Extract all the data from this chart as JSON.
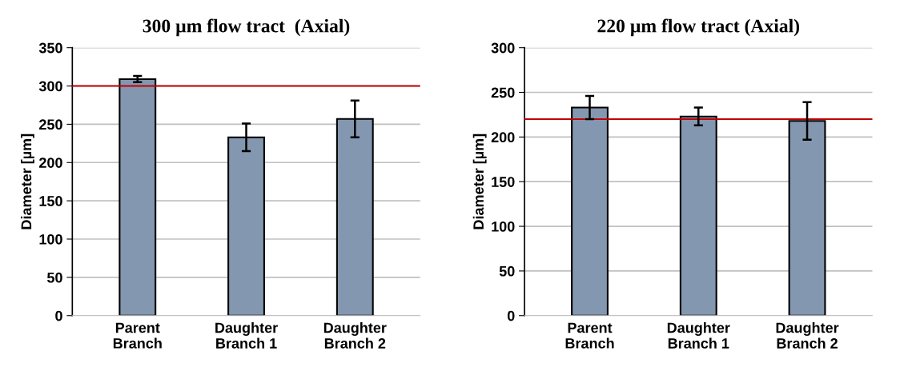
{
  "chart_data": [
    {
      "type": "bar",
      "title": "300 µm flow tract  (Axial)",
      "ylabel": "Diameter [µm]",
      "categories": [
        "Parent\nBranch",
        "Daughter\nBranch 1",
        "Daughter\nBranch 2"
      ],
      "values": [
        309,
        233,
        257
      ],
      "errors": [
        4,
        18,
        24
      ],
      "color": "#8497b0",
      "ylim": [
        0,
        350
      ],
      "yticks": [
        0,
        50,
        100,
        150,
        200,
        250,
        300,
        350
      ],
      "grid": "y",
      "legend": false,
      "ref_lines": [
        {
          "axis": "y",
          "value": 300,
          "color": "#c00000"
        }
      ]
    },
    {
      "type": "bar",
      "title": "220 µm flow tract (Axial)",
      "ylabel": "Diameter [µm]",
      "categories": [
        "Parent\nBranch",
        "Daughter\nBranch 1",
        "Daughter\nBranch 2"
      ],
      "values": [
        233,
        223,
        218
      ],
      "errors": [
        13,
        10,
        21
      ],
      "color": "#8497b0",
      "ylim": [
        0,
        300
      ],
      "yticks": [
        0,
        50,
        100,
        150,
        200,
        250,
        300
      ],
      "grid": "y",
      "legend": false,
      "ref_lines": [
        {
          "axis": "y",
          "value": 220,
          "color": "#c00000"
        }
      ]
    }
  ]
}
